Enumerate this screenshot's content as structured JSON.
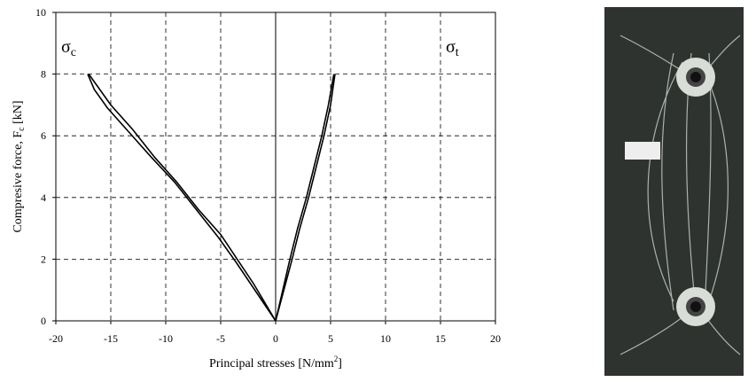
{
  "chart_data": {
    "type": "line",
    "x_label": {
      "main": "Principal stresses [N/mm",
      "sup": "2",
      "end": "]"
    },
    "y_label": {
      "main": "Compresive force, F",
      "sub": "c",
      "end": " [kN]"
    },
    "annotations": [
      {
        "text": "σ",
        "sub": "c",
        "x": -20,
        "y": 8.7
      },
      {
        "text": "σ",
        "sub": "t",
        "x": 15,
        "y": 8.7
      }
    ],
    "series": [
      {
        "color": "#000000",
        "x": [
          0,
          -2,
          -3.5,
          -5,
          -7,
          -9,
          -11,
          -13,
          -15,
          -16,
          -17
        ],
        "values": [
          0,
          1.2,
          2,
          2.8,
          3.6,
          4.5,
          5.3,
          6.2,
          7,
          7.5,
          8
        ]
      },
      {
        "color": "#000000",
        "x": [
          0,
          -3.6,
          -5.2,
          -7.2,
          -9.2,
          -11.3,
          -13.3,
          -15.3,
          -16.5,
          -17.1
        ],
        "values": [
          0,
          1.9,
          2.7,
          3.6,
          4.5,
          5.3,
          6.1,
          6.9,
          7.5,
          8
        ]
      },
      {
        "color": "#000000",
        "x": [
          0,
          1.3,
          2,
          2.8,
          3.5,
          4.2,
          4.8,
          5.3
        ],
        "values": [
          0,
          2,
          3,
          4,
          5,
          6,
          7,
          8
        ]
      },
      {
        "color": "#000000",
        "x": [
          0,
          1.5,
          2.2,
          3,
          3.7,
          4.4,
          5,
          5.4
        ],
        "values": [
          0,
          2,
          3,
          4,
          5,
          6,
          7,
          8
        ]
      }
    ],
    "xlim": [
      -20,
      20
    ],
    "xticks": [
      -20,
      -15,
      -10,
      -5,
      0,
      5,
      10,
      15,
      20
    ],
    "ylim": [
      0,
      10
    ],
    "yticks": [
      0,
      2,
      4,
      6,
      8,
      10
    ],
    "grid": true
  }
}
